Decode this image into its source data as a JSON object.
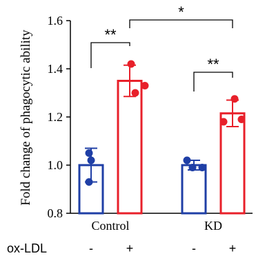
{
  "chart_data": {
    "type": "bar",
    "ylabel": "Fold change of phagocytic ability",
    "ylim": [
      0.8,
      1.6
    ],
    "yticks": [
      "0.8",
      "1.0",
      "1.2",
      "1.4",
      "1.6"
    ],
    "groups": [
      "Control",
      "KD"
    ],
    "treatment_row_label": "ox-LDL",
    "treatment_marks": [
      "-",
      "+",
      "-",
      "+"
    ],
    "colors": {
      "minus": "#1f3fa6",
      "plus": "#e8202a"
    },
    "bars": [
      {
        "group": "Control",
        "treatment": "-",
        "value": 1.0,
        "error": 0.07,
        "points": [
          1.05,
          1.02,
          0.93
        ]
      },
      {
        "group": "Control",
        "treatment": "+",
        "value": 1.35,
        "error": 0.065,
        "points": [
          1.42,
          1.3,
          1.33
        ]
      },
      {
        "group": "KD",
        "treatment": "-",
        "value": 1.0,
        "error": 0.02,
        "points": [
          1.02,
          0.99,
          0.99
        ]
      },
      {
        "group": "KD",
        "treatment": "+",
        "value": 1.215,
        "error": 0.055,
        "points": [
          1.275,
          1.18,
          1.19
        ]
      }
    ],
    "annotations": [
      {
        "label": "**",
        "from_bar": 0,
        "to_bar": 1
      },
      {
        "label": "**",
        "from_bar": 2,
        "to_bar": 3
      },
      {
        "label": "*",
        "from_bar": 1,
        "to_bar": 3
      }
    ]
  }
}
